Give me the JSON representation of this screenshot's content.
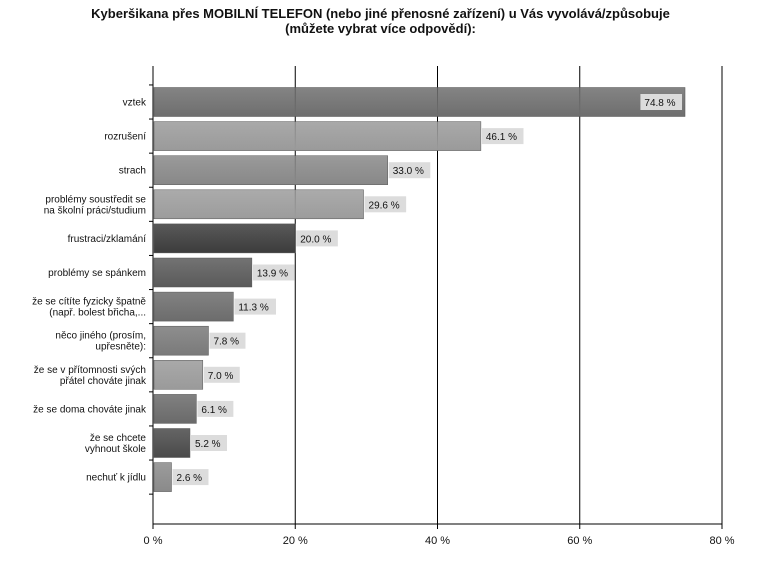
{
  "chart_data": {
    "type": "bar",
    "orientation": "horizontal",
    "title_lines": [
      "Kyberšikana přes MOBILNÍ TELEFON (nebo jiné přenosné zařízení) u Vás vyvolává/způsobuje",
      "(můžete vybrat více odpovědí):"
    ],
    "categories": [
      [
        "vztek"
      ],
      [
        "rozrušení"
      ],
      [
        "strach"
      ],
      [
        "problémy soustředit se",
        "na školní práci/studium"
      ],
      [
        "frustraci/zklamání"
      ],
      [
        "problémy se spánkem"
      ],
      [
        "že se cítíte fyzicky špatně",
        "(např. bolest břicha,..."
      ],
      [
        "něco jiného (prosím,",
        "upřesněte):"
      ],
      [
        "že se v přítomnosti svých",
        "přátel chováte jinak"
      ],
      [
        "že se doma chováte jinak"
      ],
      [
        "že se chcete",
        "vyhnout škole"
      ],
      [
        "nechuť k jídlu"
      ]
    ],
    "values": [
      74.8,
      46.1,
      33.0,
      29.6,
      20.0,
      13.9,
      11.3,
      7.8,
      7.0,
      6.1,
      5.2,
      2.6
    ],
    "value_labels": [
      "74.8 %",
      "46.1 %",
      "33.0 %",
      "29.6 %",
      "20.0 %",
      "13.9 %",
      "11.3 %",
      "7.8 %",
      "7.0 %",
      "6.1 %",
      "5.2 %",
      "2.6 %"
    ],
    "bar_colors": [
      "#6e6e6e",
      "#9a9a9a",
      "#888888",
      "#9c9c9c",
      "#3c3c3c",
      "#5a5a5a",
      "#6c6c6c",
      "#7a7a7a",
      "#9a9a9a",
      "#6a6a6a",
      "#4a4a4a",
      "#8a8a8a"
    ],
    "xlim": [
      0,
      80
    ],
    "xticks": [
      0,
      20,
      40,
      60,
      80
    ],
    "xtick_labels": [
      "0 %",
      "20 %",
      "40 %",
      "60 %",
      "80 %"
    ],
    "grid": "vertical",
    "legend": "none"
  }
}
